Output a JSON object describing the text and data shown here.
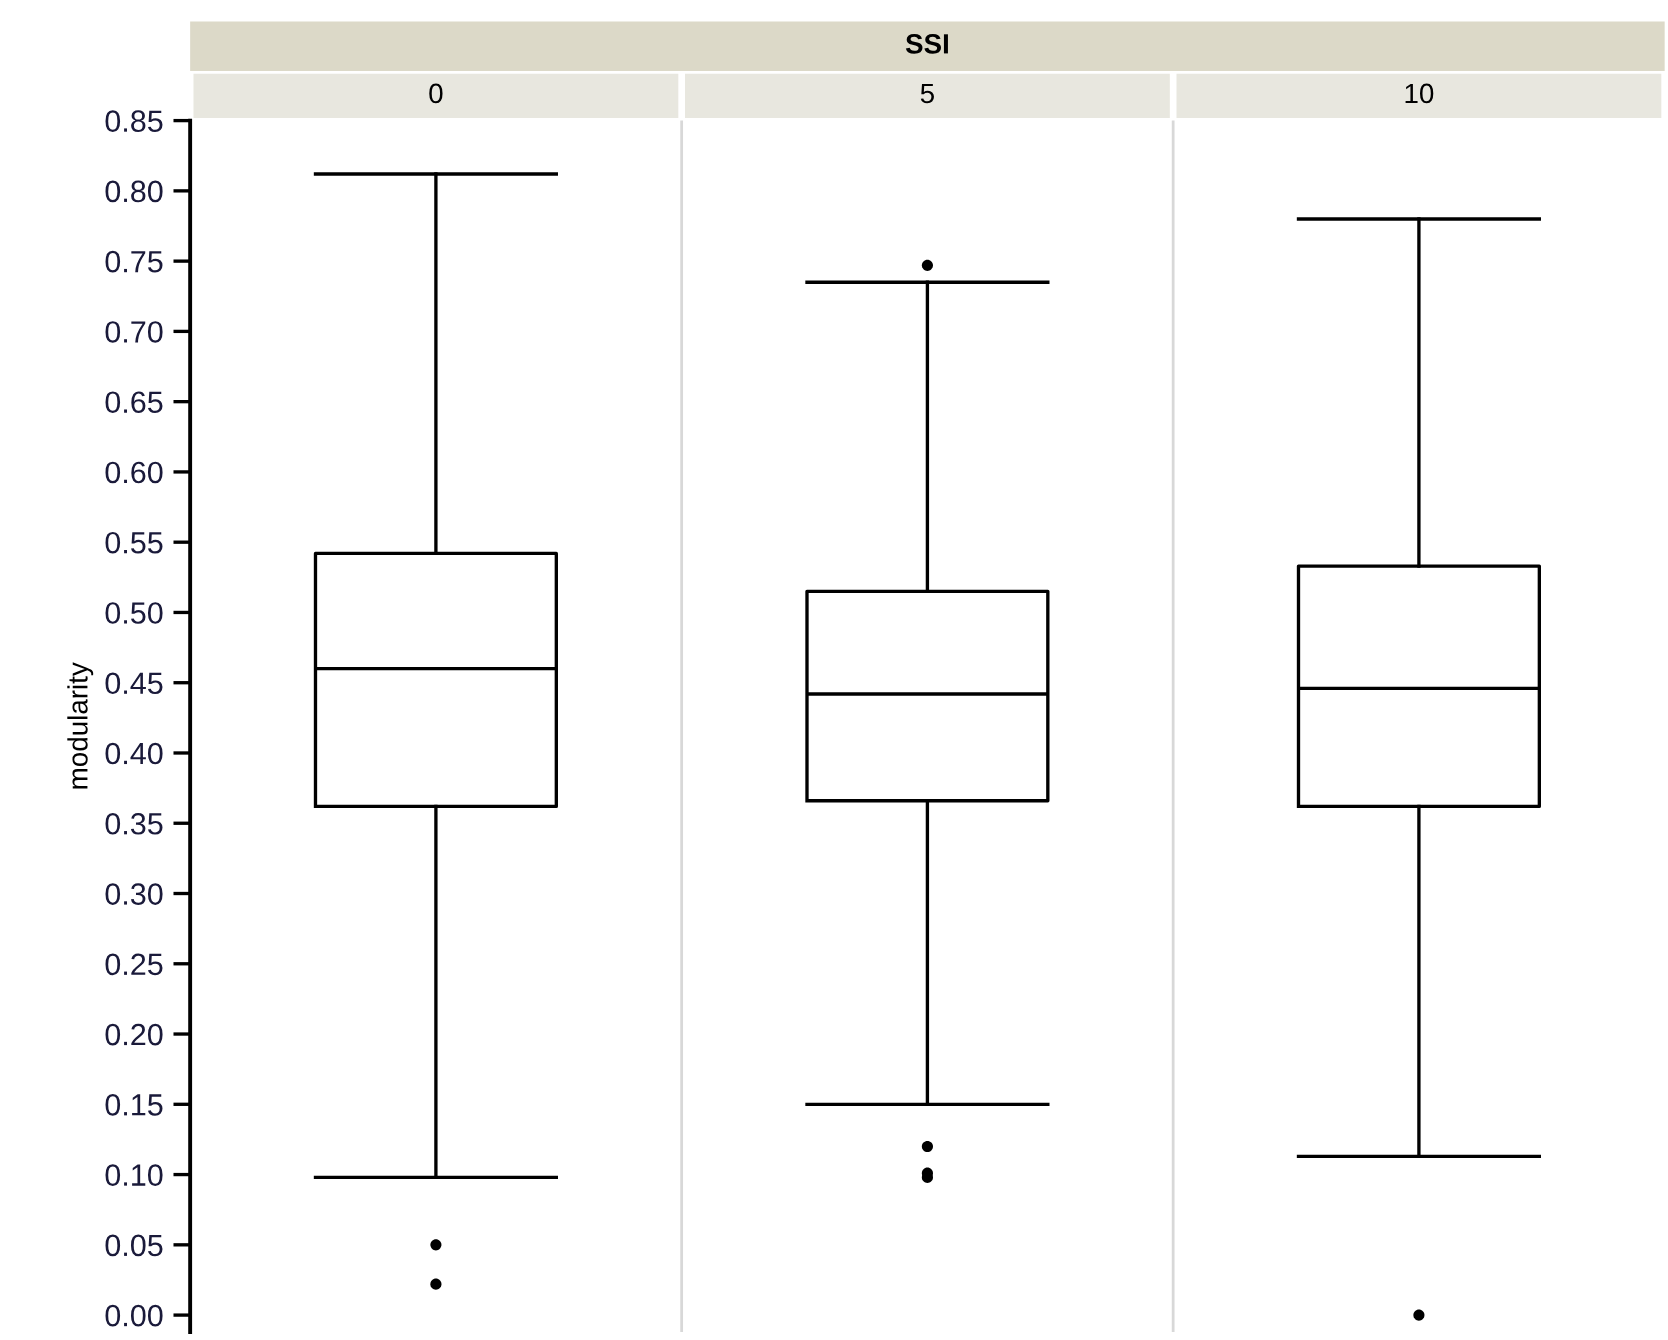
{
  "chart_data": {
    "type": "box",
    "title": "SSI",
    "ylabel": "modularity",
    "categories": [
      "0",
      "5",
      "10"
    ],
    "boxes": [
      {
        "low": 0.098,
        "q1": 0.362,
        "median": 0.46,
        "q3": 0.542,
        "high": 0.812,
        "outliers": [
          0.05,
          0.022
        ]
      },
      {
        "low": 0.15,
        "q1": 0.366,
        "median": 0.442,
        "q3": 0.515,
        "high": 0.735,
        "outliers": [
          0.747,
          0.12,
          0.101,
          0.098
        ]
      },
      {
        "low": 0.113,
        "q1": 0.362,
        "median": 0.446,
        "q3": 0.533,
        "high": 0.78,
        "outliers": [
          0.0
        ]
      }
    ],
    "color": "#000000",
    "ylim": [
      -0.012,
      0.85
    ],
    "yticks": [
      {
        "value": 0,
        "label": "0.00"
      },
      {
        "value": 0.05,
        "label": "0.05"
      },
      {
        "value": 0.1,
        "label": "0.10"
      },
      {
        "value": 0.15,
        "label": "0.15"
      },
      {
        "value": 0.2,
        "label": "0.20"
      },
      {
        "value": 0.25,
        "label": "0.25"
      },
      {
        "value": 0.3,
        "label": "0.30"
      },
      {
        "value": 0.35,
        "label": "0.35"
      },
      {
        "value": 0.4,
        "label": "0.40"
      },
      {
        "value": 0.45,
        "label": "0.45"
      },
      {
        "value": 0.5,
        "label": "0.50"
      },
      {
        "value": 0.55,
        "label": "0.55"
      },
      {
        "value": 0.6,
        "label": "0.60"
      },
      {
        "value": 0.65,
        "label": "0.65"
      },
      {
        "value": 0.7,
        "label": "0.70"
      },
      {
        "value": 0.75,
        "label": "0.75"
      },
      {
        "value": 0.8,
        "label": "0.80"
      },
      {
        "value": 0.85,
        "label": "0.85"
      }
    ],
    "grid": false
  }
}
